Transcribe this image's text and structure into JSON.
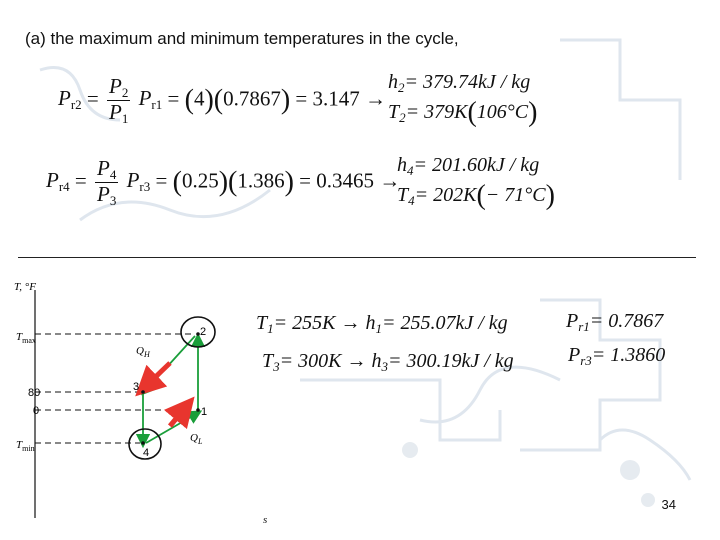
{
  "title": "(a) the maximum and minimum temperatures in the cycle,",
  "eq1": {
    "lhs": "P",
    "lhs_sub": "r2",
    "num": "P",
    "num_sub": "2",
    "den": "P",
    "den_sub": "1",
    "mult": "P",
    "mult_sub": "r1",
    "v1": "4",
    "v2": "0.7867",
    "result": "= 3.147",
    "arrow": "→"
  },
  "res1": {
    "h": "h",
    "h_sub": "2",
    "h_val": "= 379.74",
    "h_unit": "kJ / kg",
    "T": "T",
    "T_sub": "2",
    "T_val": "= 379",
    "T_unit": "K",
    "T_c": "106°C"
  },
  "eq2": {
    "lhs": "P",
    "lhs_sub": "r4",
    "num": "P",
    "num_sub": "4",
    "den": "P",
    "den_sub": "3",
    "mult": "P",
    "mult_sub": "r3",
    "v1": "0.25",
    "v2": "1.386",
    "result": "= 0.3465",
    "arrow": "→"
  },
  "res2": {
    "h": "h",
    "h_sub": "4",
    "h_val": "= 201.60",
    "h_unit": "kJ / kg",
    "T": "T",
    "T_sub": "4",
    "T_val": "= 202",
    "T_unit": "K",
    "T_c": "− 71°C"
  },
  "given1": {
    "T": "T",
    "T_sub": "1",
    "T_val": "= 255",
    "T_unit": "K",
    "arrow": "→",
    "h": "h",
    "h_sub": "1",
    "h_val": "= 255.07",
    "h_unit": "kJ / kg",
    "P": "P",
    "P_sub": "r1",
    "P_val": "= 0.7867"
  },
  "given2": {
    "T": "T",
    "T_sub": "3",
    "T_val": "= 300",
    "T_unit": "K",
    "arrow": "→",
    "h": "h",
    "h_sub": "3",
    "h_val": "= 300.19",
    "h_unit": "kJ / kg",
    "P": "P",
    "P_sub": "r3",
    "P_val": "= 1.3860"
  },
  "diagram": {
    "y_axis": "T, °F",
    "x_axis": "s",
    "tmax": "T",
    "tmax_sub": "max",
    "tmin": "T",
    "tmin_sub": "min",
    "tick_80": "80",
    "tick_0": "0",
    "pt1": "1",
    "pt2": "2",
    "pt3": "3",
    "pt4": "4",
    "qh": "Q",
    "qh_sub": "H",
    "ql": "Q",
    "ql_sub": "L",
    "color_path": "#1a9e3a",
    "color_arrow": "#e8352e",
    "color_circle": "#111111"
  },
  "page_number": "34"
}
